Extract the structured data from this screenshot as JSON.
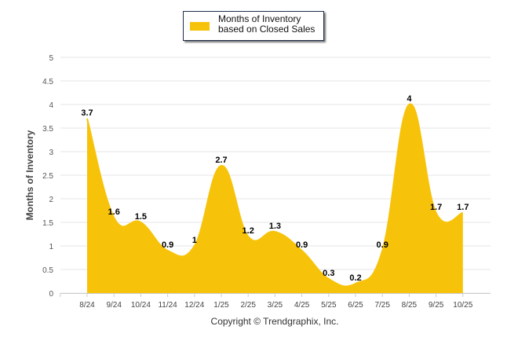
{
  "chart_data": {
    "type": "area",
    "title": "",
    "legend": {
      "label": "Months of Inventory based on Closed Sales",
      "placement": "top-center"
    },
    "ylabel": "Months of Inventory",
    "xlabel": "",
    "ylim": [
      0,
      5
    ],
    "yticks": [
      "0",
      "0.5",
      "1",
      "1.5",
      "2",
      "2.5",
      "3",
      "3.5",
      "4",
      "4.5",
      "5"
    ],
    "categories": [
      "8/24",
      "9/24",
      "10/24",
      "11/24",
      "12/24",
      "1/25",
      "2/25",
      "3/25",
      "4/25",
      "5/25",
      "6/25",
      "7/25",
      "8/25",
      "9/25",
      "10/25"
    ],
    "values": [
      3.7,
      1.6,
      1.5,
      0.9,
      1,
      2.7,
      1.2,
      1.3,
      0.9,
      0.3,
      0.2,
      0.9,
      4,
      1.7,
      1.7
    ],
    "labels": [
      "3.7",
      "1.6",
      "1.5",
      "0.9",
      "1",
      "2.7",
      "1.2",
      "1.3",
      "0.9",
      "0.3",
      "0.2",
      "0.9",
      "4",
      "1.7",
      "1.7"
    ],
    "color": "#f7c30a",
    "grid": true
  },
  "copyright": "Copyright © Trendgraphix, Inc."
}
